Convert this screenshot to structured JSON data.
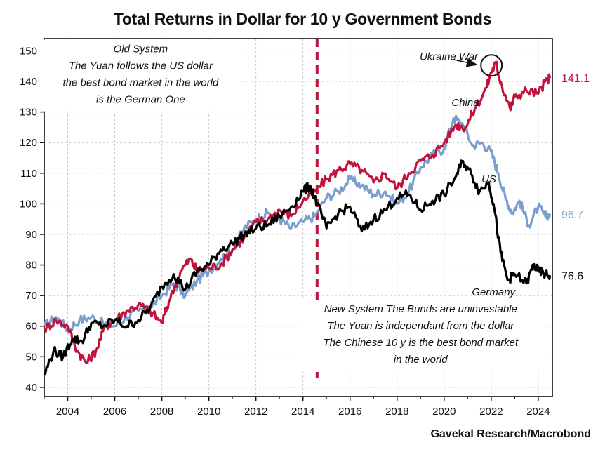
{
  "source": "Gavekal Research/Macrobond",
  "chart_data": {
    "type": "line",
    "title": "Total Returns in Dollar for 10 y Government Bonds",
    "xlim": [
      2003.0,
      2024.6
    ],
    "ylim": [
      37,
      154
    ],
    "x_ticks": [
      2004,
      2006,
      2008,
      2010,
      2012,
      2014,
      2016,
      2018,
      2020,
      2022,
      2024
    ],
    "y_ticks": [
      40,
      50,
      60,
      70,
      80,
      90,
      100,
      110,
      120,
      130,
      140,
      150
    ],
    "grid": true,
    "series": [
      {
        "name": "China",
        "color": "#c0143c",
        "end_label": "141.1",
        "points": [
          [
            2003.0,
            59
          ],
          [
            2003.5,
            62
          ],
          [
            2004.0,
            60
          ],
          [
            2004.4,
            52
          ],
          [
            2004.8,
            48
          ],
          [
            2005.2,
            52
          ],
          [
            2005.6,
            60
          ],
          [
            2006.0,
            62
          ],
          [
            2006.5,
            65
          ],
          [
            2007.0,
            67
          ],
          [
            2007.5,
            65
          ],
          [
            2008.0,
            61
          ],
          [
            2008.3,
            68
          ],
          [
            2008.8,
            78
          ],
          [
            2009.2,
            82
          ],
          [
            2009.5,
            78
          ],
          [
            2010.0,
            79
          ],
          [
            2010.5,
            80
          ],
          [
            2011.0,
            85
          ],
          [
            2011.5,
            89
          ],
          [
            2012.0,
            94
          ],
          [
            2012.5,
            95
          ],
          [
            2013.0,
            98
          ],
          [
            2013.5,
            96
          ],
          [
            2014.0,
            101
          ],
          [
            2014.5,
            104
          ],
          [
            2015.0,
            108
          ],
          [
            2015.5,
            111
          ],
          [
            2016.0,
            113
          ],
          [
            2016.5,
            111
          ],
          [
            2017.0,
            107
          ],
          [
            2017.5,
            110
          ],
          [
            2018.0,
            105
          ],
          [
            2018.5,
            110
          ],
          [
            2019.0,
            114
          ],
          [
            2019.5,
            116
          ],
          [
            2020.0,
            120
          ],
          [
            2020.5,
            126
          ],
          [
            2020.9,
            125
          ],
          [
            2021.3,
            131
          ],
          [
            2021.8,
            138
          ],
          [
            2022.0,
            143
          ],
          [
            2022.2,
            146
          ],
          [
            2022.4,
            140
          ],
          [
            2022.8,
            131
          ],
          [
            2023.0,
            135
          ],
          [
            2023.5,
            137
          ],
          [
            2024.0,
            136
          ],
          [
            2024.3,
            140
          ],
          [
            2024.5,
            141.1
          ]
        ]
      },
      {
        "name": "US",
        "color": "#7a9fcf",
        "end_label": "96.7",
        "points": [
          [
            2003.0,
            60
          ],
          [
            2003.5,
            63
          ],
          [
            2004.0,
            59
          ],
          [
            2004.5,
            62
          ],
          [
            2005.0,
            63
          ],
          [
            2005.5,
            61
          ],
          [
            2006.0,
            60
          ],
          [
            2006.5,
            63
          ],
          [
            2007.0,
            65
          ],
          [
            2007.5,
            66
          ],
          [
            2008.0,
            70
          ],
          [
            2008.5,
            74
          ],
          [
            2009.0,
            70
          ],
          [
            2009.5,
            75
          ],
          [
            2010.0,
            78
          ],
          [
            2010.5,
            82
          ],
          [
            2011.0,
            85
          ],
          [
            2011.5,
            92
          ],
          [
            2012.0,
            95
          ],
          [
            2012.5,
            97
          ],
          [
            2013.0,
            95
          ],
          [
            2013.5,
            92
          ],
          [
            2014.0,
            94
          ],
          [
            2014.5,
            96
          ],
          [
            2015.0,
            102
          ],
          [
            2015.5,
            104
          ],
          [
            2016.0,
            108
          ],
          [
            2016.5,
            106
          ],
          [
            2017.0,
            103
          ],
          [
            2017.5,
            104
          ],
          [
            2018.0,
            100
          ],
          [
            2018.5,
            104
          ],
          [
            2019.0,
            112
          ],
          [
            2019.5,
            116
          ],
          [
            2020.0,
            118
          ],
          [
            2020.4,
            128
          ],
          [
            2020.8,
            126
          ],
          [
            2021.2,
            119
          ],
          [
            2021.6,
            120
          ],
          [
            2022.0,
            117
          ],
          [
            2022.3,
            110
          ],
          [
            2022.6,
            102
          ],
          [
            2022.9,
            97
          ],
          [
            2023.2,
            101
          ],
          [
            2023.6,
            93
          ],
          [
            2024.0,
            99
          ],
          [
            2024.3,
            96
          ],
          [
            2024.5,
            96.7
          ]
        ]
      },
      {
        "name": "Germany",
        "color": "#000000",
        "end_label": "76.6",
        "points": [
          [
            2003.0,
            44
          ],
          [
            2003.4,
            52
          ],
          [
            2003.8,
            50
          ],
          [
            2004.2,
            56
          ],
          [
            2004.6,
            55
          ],
          [
            2005.0,
            61
          ],
          [
            2005.5,
            60
          ],
          [
            2006.0,
            62
          ],
          [
            2006.5,
            60
          ],
          [
            2007.0,
            62
          ],
          [
            2007.5,
            66
          ],
          [
            2008.0,
            73
          ],
          [
            2008.5,
            77
          ],
          [
            2009.0,
            72
          ],
          [
            2009.5,
            78
          ],
          [
            2010.0,
            80
          ],
          [
            2010.5,
            85
          ],
          [
            2011.0,
            87
          ],
          [
            2011.5,
            90
          ],
          [
            2012.0,
            92
          ],
          [
            2012.5,
            93
          ],
          [
            2013.0,
            96
          ],
          [
            2013.5,
            99
          ],
          [
            2014.0,
            104
          ],
          [
            2014.3,
            106
          ],
          [
            2014.6,
            100
          ],
          [
            2015.0,
            92
          ],
          [
            2015.5,
            97
          ],
          [
            2016.0,
            99
          ],
          [
            2016.5,
            91
          ],
          [
            2017.0,
            95
          ],
          [
            2017.5,
            98
          ],
          [
            2018.0,
            102
          ],
          [
            2018.5,
            103
          ],
          [
            2019.0,
            98
          ],
          [
            2019.5,
            101
          ],
          [
            2020.0,
            103
          ],
          [
            2020.5,
            109
          ],
          [
            2020.8,
            114
          ],
          [
            2021.2,
            109
          ],
          [
            2021.5,
            104
          ],
          [
            2021.9,
            107
          ],
          [
            2022.1,
            100
          ],
          [
            2022.4,
            84
          ],
          [
            2022.7,
            75
          ],
          [
            2023.0,
            77
          ],
          [
            2023.5,
            74
          ],
          [
            2023.8,
            80
          ],
          [
            2024.0,
            78
          ],
          [
            2024.3,
            77
          ],
          [
            2024.5,
            76.6
          ]
        ]
      }
    ],
    "series_labels": [
      {
        "text": "China",
        "x": 2020.9,
        "y": 132
      },
      {
        "text": "US",
        "x": 2021.9,
        "y": 107
      },
      {
        "text": "Germany",
        "x": 2022.1,
        "y": 70
      }
    ],
    "vline": {
      "x": 2014.6,
      "color": "#c0143c",
      "style": "dashed"
    },
    "annotations": [
      {
        "id": "old",
        "x": 2007.1,
        "y": 149.5,
        "lines": [
          "Old System",
          "The Yuan follows the US dollar",
          "the best bond market in the world",
          "is the German One"
        ]
      },
      {
        "id": "new",
        "x": 2019.0,
        "y": 64.5,
        "lines": [
          "New System The Bunds are uninvestable",
          "The Yuan is independant from the dollar",
          "The Chinese 10 y is the best bond market",
          "in the world"
        ]
      },
      {
        "id": "ukraine",
        "x": 2020.2,
        "y": 147,
        "lines": [
          "Ukraine War"
        ]
      }
    ],
    "highlight": {
      "x": 2022.1,
      "y": 145,
      "shape": "circle"
    }
  }
}
